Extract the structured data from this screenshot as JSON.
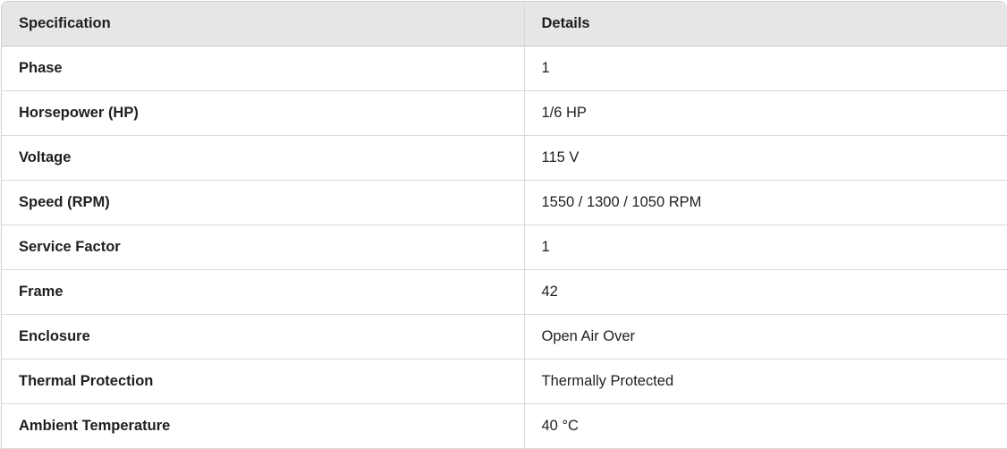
{
  "table": {
    "headers": [
      "Specification",
      "Details"
    ],
    "rows": [
      {
        "spec": "Phase",
        "details": "1"
      },
      {
        "spec": "Horsepower (HP)",
        "details": "1/6 HP"
      },
      {
        "spec": "Voltage",
        "details": "115 V"
      },
      {
        "spec": "Speed (RPM)",
        "details": "1550 / 1300 / 1050 RPM"
      },
      {
        "spec": "Service Factor",
        "details": "1"
      },
      {
        "spec": "Frame",
        "details": "42"
      },
      {
        "spec": "Enclosure",
        "details": "Open Air Over"
      },
      {
        "spec": "Thermal Protection",
        "details": "Thermally Protected"
      },
      {
        "spec": "Ambient Temperature",
        "details": "40 °C"
      }
    ]
  }
}
